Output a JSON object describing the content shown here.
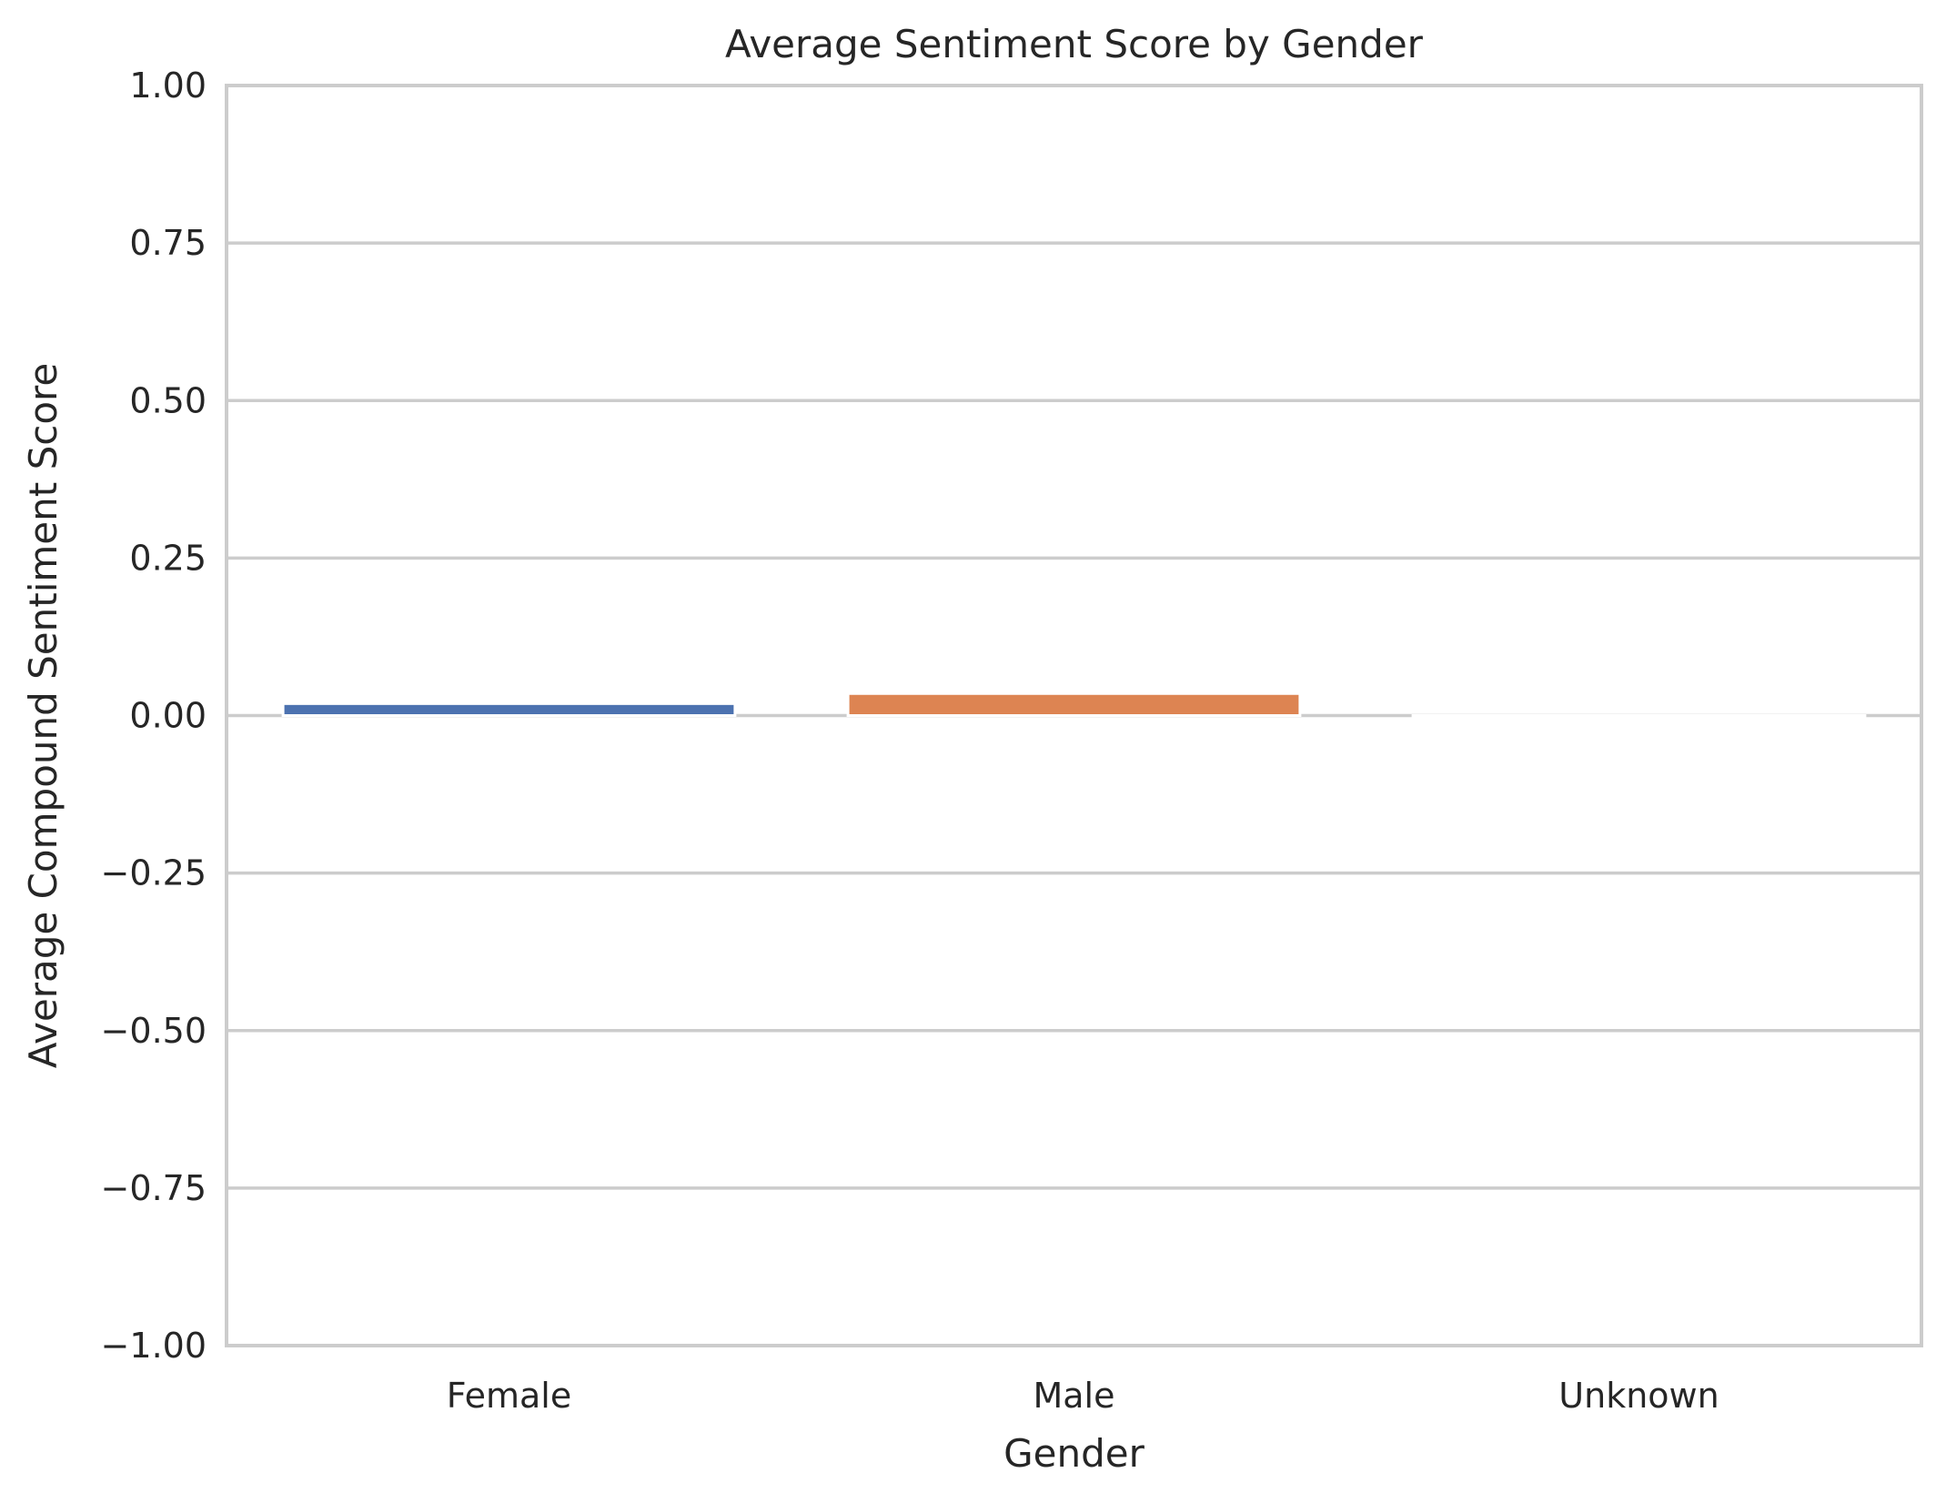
{
  "chart_data": {
    "type": "bar",
    "title": "Average Sentiment Score by Gender",
    "xlabel": "Gender",
    "ylabel": "Average Compound Sentiment Score",
    "categories": [
      "Female",
      "Male",
      "Unknown"
    ],
    "values": [
      0.019,
      0.035,
      0.0
    ],
    "colors": [
      "#4c72b0",
      "#dd8452",
      "#55a868"
    ],
    "ylim": [
      -1.0,
      1.0
    ],
    "yticks": [
      1.0,
      0.75,
      0.5,
      0.25,
      0.0,
      -0.25,
      -0.5,
      -0.75,
      -1.0
    ],
    "ytick_labels": [
      "1.00",
      "0.75",
      "0.50",
      "0.25",
      "0.00",
      "−0.25",
      "−0.50",
      "−0.75",
      "−1.00"
    ],
    "grid": "horizontal",
    "legend": "none"
  }
}
